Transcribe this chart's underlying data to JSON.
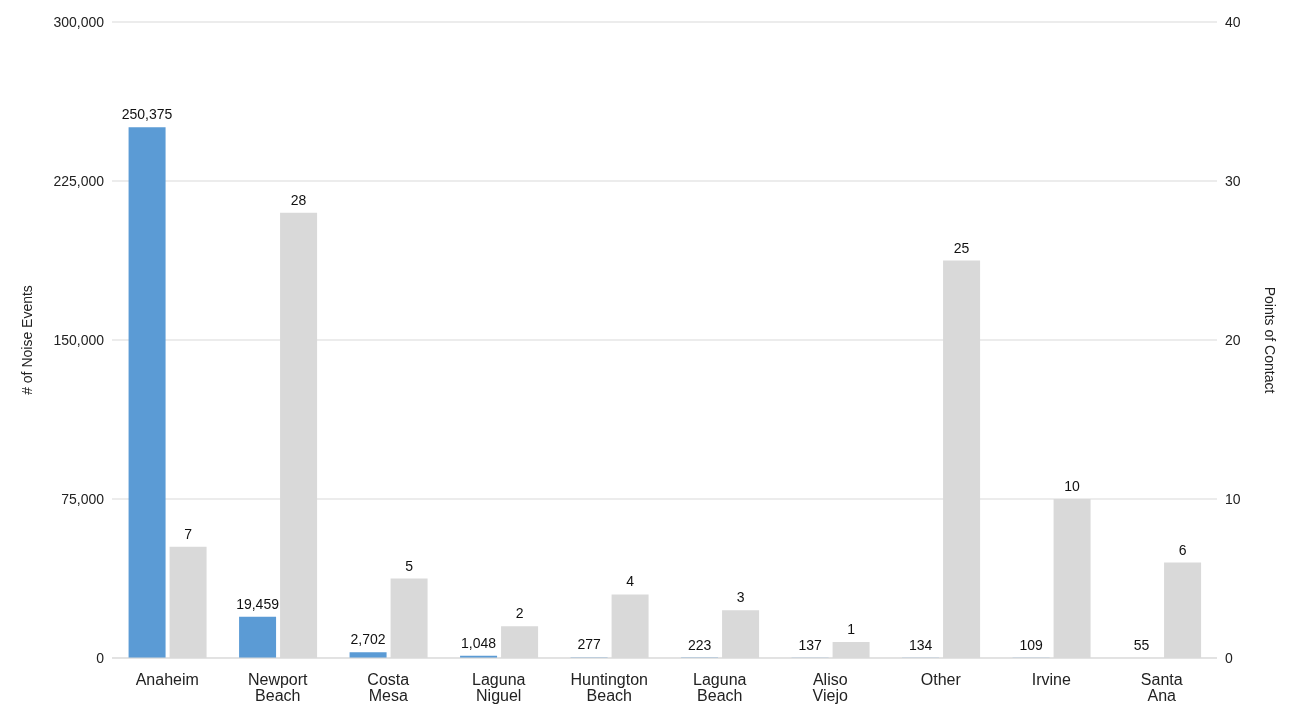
{
  "chart_data": {
    "type": "bar",
    "ylabel": "# of Noise Events",
    "y2label": "Points of Contact",
    "categories": [
      "Anaheim",
      "Newport Beach",
      "Costa Mesa",
      "Laguna Niguel",
      "Huntington Beach",
      "Laguna Beach",
      "Aliso Viejo",
      "Other",
      "Irvine",
      "Santa Ana"
    ],
    "series": [
      {
        "color": "#5b9bd5",
        "values": [
          250375,
          19459,
          2702,
          1048,
          277,
          223,
          137,
          134,
          109,
          55
        ],
        "value_labels": [
          "250,375",
          "19,459",
          "2,702",
          "1,048",
          "277",
          "223",
          "137",
          "134",
          "109",
          "55"
        ]
      },
      {
        "color": "#d9d9d9",
        "axis": "y2",
        "values": [
          7,
          28,
          5,
          2,
          4,
          3,
          1,
          25,
          10,
          6
        ],
        "value_labels": [
          "7",
          "28",
          "5",
          "2",
          "4",
          "3",
          "1",
          "25",
          "10",
          "6"
        ]
      }
    ],
    "ylim": [
      0,
      300000
    ],
    "yticks": [
      {
        "value": 0,
        "label": "0"
      },
      {
        "value": 75000,
        "label": "75,000"
      },
      {
        "value": 150000,
        "label": "150,000"
      },
      {
        "value": 225000,
        "label": "225,000"
      },
      {
        "value": 300000,
        "label": "300,000"
      }
    ],
    "y2lim": [
      0,
      40
    ],
    "y2ticks": [
      0,
      10,
      20,
      30,
      40
    ],
    "grid": "y"
  }
}
